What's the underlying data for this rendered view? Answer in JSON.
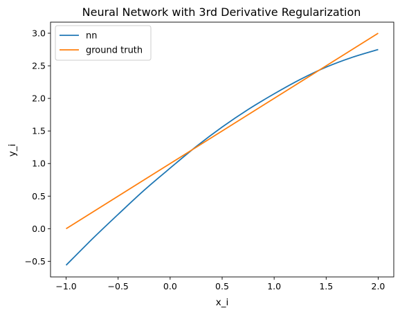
{
  "chart_data": {
    "type": "line",
    "title": "Neural Network with 3rd Derivative Regularization",
    "xlabel": "x_i",
    "ylabel": "y_i",
    "xlim": [
      -1.15,
      2.15
    ],
    "ylim": [
      -0.74,
      3.17
    ],
    "x_ticks": [
      -1.0,
      -0.5,
      0.0,
      0.5,
      1.0,
      1.5,
      2.0
    ],
    "x_tick_labels": [
      "−1.0",
      "−0.5",
      "0.0",
      "0.5",
      "1.0",
      "1.5",
      "2.0"
    ],
    "y_ticks": [
      -0.5,
      0.0,
      0.5,
      1.0,
      1.5,
      2.0,
      2.5,
      3.0
    ],
    "y_tick_labels": [
      "−0.5",
      "0.0",
      "0.5",
      "1.0",
      "1.5",
      "2.0",
      "2.5",
      "3.0"
    ],
    "grid": false,
    "legend_position": "top-left",
    "series": [
      {
        "name": "nn",
        "color": "#1f77b4",
        "x": [
          -1.0,
          -0.75,
          -0.5,
          -0.25,
          0.0,
          0.25,
          0.5,
          0.75,
          1.0,
          1.25,
          1.5,
          1.75,
          2.0
        ],
        "y": [
          -0.56,
          -0.16,
          0.22,
          0.59,
          0.93,
          1.26,
          1.56,
          1.83,
          2.07,
          2.29,
          2.48,
          2.63,
          2.75
        ]
      },
      {
        "name": "ground truth",
        "color": "#ff7f0e",
        "x": [
          -1.0,
          2.0
        ],
        "y": [
          0.0,
          3.0
        ]
      }
    ]
  }
}
